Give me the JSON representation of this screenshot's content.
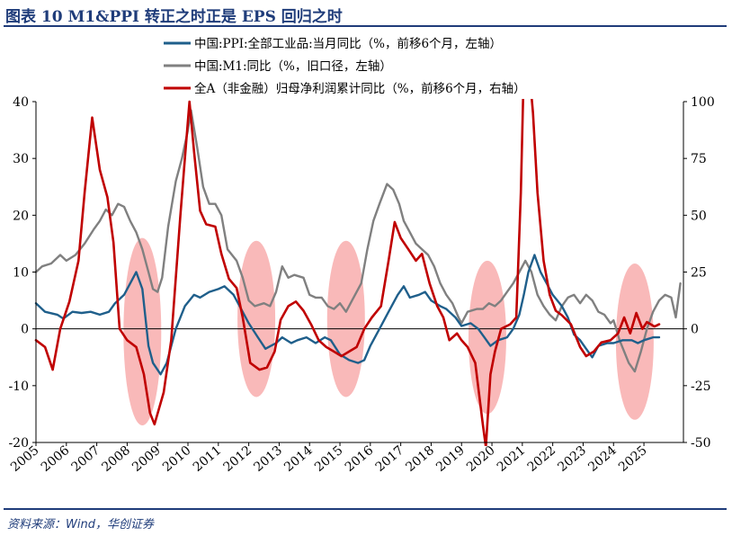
{
  "figure": {
    "title": "图表 10   M1&PPI 转正之时正是 EPS 回归之时",
    "source": "资料来源：Wind，华创证券"
  },
  "chart_data": {
    "type": "line",
    "legend_position": "top-center",
    "x_ticks": [
      "2005",
      "2006",
      "2007",
      "2008",
      "2009",
      "2010",
      "2011",
      "2012",
      "2013",
      "2014",
      "2015",
      "2016",
      "2017",
      "2018",
      "2019",
      "2020",
      "2021",
      "2022",
      "2023",
      "2024",
      "2025"
    ],
    "left_axis": {
      "ylim": [
        -20,
        40
      ],
      "ticks": [
        "-20",
        "-10",
        "0",
        "10",
        "20",
        "30",
        "40"
      ]
    },
    "right_axis": {
      "ylim": [
        -50,
        100
      ],
      "ticks": [
        "-50",
        "-25",
        "0",
        "25",
        "50",
        "75",
        "100"
      ]
    },
    "colors": {
      "ppi": "#1f5f8b",
      "m1": "#808080",
      "eps": "#c00000",
      "highlight": "#f7a8a8",
      "axis": "#000000"
    },
    "highlights": [
      {
        "center_year": 2008.5,
        "left_range": [
          -17,
          16
        ]
      },
      {
        "center_year": 2012.25,
        "left_range": [
          -12,
          15.5
        ]
      },
      {
        "center_year": 2015.2,
        "left_range": [
          -12,
          15.5
        ]
      },
      {
        "center_year": 2019.85,
        "left_range": [
          -15,
          12
        ]
      },
      {
        "center_year": 2024.7,
        "left_range": [
          -16,
          11.5
        ]
      }
    ],
    "series": [
      {
        "name": "中国:PPI:全部工业品:当月同比（%，前移6个月，左轴）",
        "key": "ppi",
        "axis": "left",
        "width": 2.4,
        "points": [
          [
            2005.0,
            4.5
          ],
          [
            2005.3,
            3
          ],
          [
            2005.7,
            2.5
          ],
          [
            2005.9,
            1.8
          ],
          [
            2006.2,
            3
          ],
          [
            2006.5,
            2.8
          ],
          [
            2006.8,
            3
          ],
          [
            2007.1,
            2.5
          ],
          [
            2007.4,
            3
          ],
          [
            2007.6,
            4.5
          ],
          [
            2007.9,
            6
          ],
          [
            2008.1,
            8
          ],
          [
            2008.3,
            10
          ],
          [
            2008.5,
            7
          ],
          [
            2008.7,
            -3
          ],
          [
            2008.85,
            -6
          ],
          [
            2009.1,
            -8
          ],
          [
            2009.3,
            -6
          ],
          [
            2009.6,
            0
          ],
          [
            2009.9,
            4
          ],
          [
            2010.2,
            6
          ],
          [
            2010.4,
            5.5
          ],
          [
            2010.7,
            6.5
          ],
          [
            2011.0,
            7
          ],
          [
            2011.2,
            7.5
          ],
          [
            2011.5,
            6
          ],
          [
            2011.7,
            4
          ],
          [
            2012.0,
            1
          ],
          [
            2012.3,
            -1.5
          ],
          [
            2012.55,
            -3.5
          ],
          [
            2012.9,
            -2.5
          ],
          [
            2013.1,
            -1.5
          ],
          [
            2013.4,
            -2.5
          ],
          [
            2013.6,
            -2
          ],
          [
            2013.9,
            -1.5
          ],
          [
            2014.2,
            -2.5
          ],
          [
            2014.5,
            -1.5
          ],
          [
            2014.7,
            -2
          ],
          [
            2015.0,
            -4.5
          ],
          [
            2015.3,
            -5.5
          ],
          [
            2015.6,
            -6
          ],
          [
            2015.8,
            -5.5
          ],
          [
            2016.0,
            -3
          ],
          [
            2016.3,
            0
          ],
          [
            2016.6,
            3
          ],
          [
            2016.9,
            6
          ],
          [
            2017.1,
            7.5
          ],
          [
            2017.3,
            5.5
          ],
          [
            2017.6,
            6
          ],
          [
            2017.8,
            6.5
          ],
          [
            2018.0,
            5
          ],
          [
            2018.3,
            4
          ],
          [
            2018.5,
            3.5
          ],
          [
            2018.8,
            2
          ],
          [
            2019.0,
            0.5
          ],
          [
            2019.3,
            1
          ],
          [
            2019.55,
            0
          ],
          [
            2019.75,
            -1.5
          ],
          [
            2019.95,
            -3
          ],
          [
            2020.2,
            -2
          ],
          [
            2020.5,
            -1.5
          ],
          [
            2020.7,
            0
          ],
          [
            2020.9,
            2.5
          ],
          [
            2021.05,
            6
          ],
          [
            2021.2,
            10
          ],
          [
            2021.4,
            13
          ],
          [
            2021.6,
            10
          ],
          [
            2021.8,
            8
          ],
          [
            2022.0,
            6
          ],
          [
            2022.3,
            4
          ],
          [
            2022.5,
            2
          ],
          [
            2022.7,
            -1
          ],
          [
            2022.9,
            -2
          ],
          [
            2023.1,
            -3.5
          ],
          [
            2023.3,
            -5
          ],
          [
            2023.5,
            -3
          ],
          [
            2023.8,
            -2.5
          ],
          [
            2024.0,
            -2.5
          ],
          [
            2024.3,
            -2
          ],
          [
            2024.6,
            -2
          ],
          [
            2024.8,
            -2.5
          ],
          [
            2025.0,
            -2
          ],
          [
            2025.3,
            -1.5
          ],
          [
            2025.5,
            -1.5
          ]
        ]
      },
      {
        "name": "中国:M1:同比（%，旧口径，左轴）",
        "key": "m1",
        "axis": "left",
        "width": 2.4,
        "points": [
          [
            2005.0,
            10
          ],
          [
            2005.2,
            11
          ],
          [
            2005.5,
            11.5
          ],
          [
            2005.8,
            13
          ],
          [
            2006.0,
            12
          ],
          [
            2006.3,
            13
          ],
          [
            2006.6,
            15
          ],
          [
            2006.9,
            17.5
          ],
          [
            2007.1,
            19
          ],
          [
            2007.3,
            21
          ],
          [
            2007.5,
            20
          ],
          [
            2007.7,
            22
          ],
          [
            2007.9,
            21.5
          ],
          [
            2008.1,
            19
          ],
          [
            2008.3,
            17
          ],
          [
            2008.5,
            14
          ],
          [
            2008.7,
            10
          ],
          [
            2008.85,
            7
          ],
          [
            2009.0,
            6.5
          ],
          [
            2009.15,
            9
          ],
          [
            2009.35,
            18
          ],
          [
            2009.6,
            26
          ],
          [
            2009.8,
            30
          ],
          [
            2010.0,
            35
          ],
          [
            2010.1,
            38.5
          ],
          [
            2010.3,
            32
          ],
          [
            2010.5,
            25
          ],
          [
            2010.7,
            22
          ],
          [
            2010.9,
            22
          ],
          [
            2011.1,
            20
          ],
          [
            2011.3,
            14
          ],
          [
            2011.6,
            12
          ],
          [
            2011.8,
            9
          ],
          [
            2012.0,
            5
          ],
          [
            2012.2,
            4
          ],
          [
            2012.5,
            4.5
          ],
          [
            2012.7,
            4
          ],
          [
            2012.9,
            6.5
          ],
          [
            2013.1,
            11
          ],
          [
            2013.3,
            9
          ],
          [
            2013.5,
            9.5
          ],
          [
            2013.8,
            9
          ],
          [
            2014.0,
            6
          ],
          [
            2014.2,
            5.5
          ],
          [
            2014.4,
            5.5
          ],
          [
            2014.6,
            4
          ],
          [
            2014.8,
            3.5
          ],
          [
            2015.0,
            4.5
          ],
          [
            2015.2,
            3
          ],
          [
            2015.4,
            5
          ],
          [
            2015.7,
            8
          ],
          [
            2015.9,
            14
          ],
          [
            2016.1,
            19
          ],
          [
            2016.3,
            22
          ],
          [
            2016.55,
            25.5
          ],
          [
            2016.75,
            24.5
          ],
          [
            2016.95,
            22
          ],
          [
            2017.1,
            19
          ],
          [
            2017.3,
            17
          ],
          [
            2017.5,
            15
          ],
          [
            2017.7,
            14
          ],
          [
            2017.9,
            13
          ],
          [
            2018.1,
            11
          ],
          [
            2018.3,
            8
          ],
          [
            2018.5,
            6
          ],
          [
            2018.7,
            4.5
          ],
          [
            2018.9,
            2
          ],
          [
            2019.0,
            1
          ],
          [
            2019.2,
            3
          ],
          [
            2019.5,
            3.5
          ],
          [
            2019.7,
            3.5
          ],
          [
            2019.9,
            4.5
          ],
          [
            2020.1,
            4
          ],
          [
            2020.3,
            5
          ],
          [
            2020.5,
            6.5
          ],
          [
            2020.7,
            8
          ],
          [
            2020.9,
            10
          ],
          [
            2021.1,
            12
          ],
          [
            2021.3,
            10
          ],
          [
            2021.5,
            6
          ],
          [
            2021.7,
            4
          ],
          [
            2021.9,
            2.5
          ],
          [
            2022.1,
            1.5
          ],
          [
            2022.3,
            4
          ],
          [
            2022.5,
            5.5
          ],
          [
            2022.7,
            6
          ],
          [
            2022.9,
            4.5
          ],
          [
            2023.1,
            6
          ],
          [
            2023.3,
            5
          ],
          [
            2023.5,
            3
          ],
          [
            2023.7,
            2.5
          ],
          [
            2023.9,
            1
          ],
          [
            2024.0,
            1.5
          ],
          [
            2024.2,
            -2
          ],
          [
            2024.5,
            -6
          ],
          [
            2024.7,
            -7.5
          ],
          [
            2024.9,
            -4
          ],
          [
            2025.1,
            0
          ],
          [
            2025.3,
            3
          ],
          [
            2025.5,
            5
          ],
          [
            2025.7,
            6
          ],
          [
            2025.9,
            5.5
          ],
          [
            2026.05,
            2
          ],
          [
            2026.2,
            8
          ]
        ]
      },
      {
        "name": "全A（非金融）归母净利润累计同比（%，前移6个月，右轴）",
        "key": "eps",
        "axis": "right",
        "width": 2.6,
        "points": [
          [
            2005.0,
            -5
          ],
          [
            2005.3,
            -8
          ],
          [
            2005.55,
            -18
          ],
          [
            2005.8,
            0
          ],
          [
            2006.1,
            12
          ],
          [
            2006.4,
            30
          ],
          [
            2006.6,
            60
          ],
          [
            2006.85,
            93
          ],
          [
            2007.1,
            70
          ],
          [
            2007.35,
            58
          ],
          [
            2007.55,
            38
          ],
          [
            2007.75,
            0
          ],
          [
            2008.0,
            -5
          ],
          [
            2008.3,
            -8
          ],
          [
            2008.55,
            -20
          ],
          [
            2008.75,
            -37
          ],
          [
            2008.9,
            -42
          ],
          [
            2009.2,
            -28
          ],
          [
            2009.45,
            -5
          ],
          [
            2009.75,
            50
          ],
          [
            2009.9,
            75
          ],
          [
            2010.05,
            100
          ],
          [
            2010.2,
            78
          ],
          [
            2010.4,
            52
          ],
          [
            2010.6,
            46
          ],
          [
            2010.9,
            45
          ],
          [
            2011.1,
            33
          ],
          [
            2011.35,
            22
          ],
          [
            2011.6,
            18
          ],
          [
            2011.8,
            5
          ],
          [
            2012.05,
            -15
          ],
          [
            2012.35,
            -18
          ],
          [
            2012.6,
            -17
          ],
          [
            2012.85,
            -10
          ],
          [
            2013.05,
            4
          ],
          [
            2013.3,
            10
          ],
          [
            2013.55,
            12
          ],
          [
            2013.8,
            8
          ],
          [
            2014.05,
            2
          ],
          [
            2014.3,
            -5
          ],
          [
            2014.55,
            -8
          ],
          [
            2014.8,
            -10
          ],
          [
            2015.05,
            -12
          ],
          [
            2015.3,
            -10
          ],
          [
            2015.55,
            -8
          ],
          [
            2015.8,
            0
          ],
          [
            2016.05,
            5
          ],
          [
            2016.35,
            10
          ],
          [
            2016.6,
            30
          ],
          [
            2016.8,
            47
          ],
          [
            2017.0,
            40
          ],
          [
            2017.25,
            35
          ],
          [
            2017.5,
            30
          ],
          [
            2017.7,
            33
          ],
          [
            2017.95,
            20
          ],
          [
            2018.2,
            10
          ],
          [
            2018.4,
            5
          ],
          [
            2018.6,
            -5
          ],
          [
            2018.85,
            -2
          ],
          [
            2019.0,
            -5
          ],
          [
            2019.2,
            -8
          ],
          [
            2019.45,
            -15
          ],
          [
            2019.7,
            -42
          ],
          [
            2019.8,
            -52
          ],
          [
            2019.95,
            -20
          ],
          [
            2020.1,
            -10
          ],
          [
            2020.3,
            0
          ],
          [
            2020.6,
            2
          ],
          [
            2020.8,
            5
          ],
          [
            2020.95,
            60
          ],
          [
            2021.05,
            115
          ],
          [
            2021.2,
            118
          ],
          [
            2021.35,
            95
          ],
          [
            2021.5,
            60
          ],
          [
            2021.7,
            30
          ],
          [
            2021.9,
            15
          ],
          [
            2022.1,
            8
          ],
          [
            2022.3,
            6
          ],
          [
            2022.6,
            2
          ],
          [
            2022.9,
            -8
          ],
          [
            2023.1,
            -12
          ],
          [
            2023.35,
            -10
          ],
          [
            2023.6,
            -6
          ],
          [
            2023.9,
            -5
          ],
          [
            2024.15,
            -2
          ],
          [
            2024.35,
            5
          ],
          [
            2024.55,
            -2
          ],
          [
            2024.75,
            7
          ],
          [
            2024.95,
            0
          ],
          [
            2025.1,
            3
          ],
          [
            2025.35,
            1
          ],
          [
            2025.5,
            2
          ]
        ]
      }
    ]
  }
}
